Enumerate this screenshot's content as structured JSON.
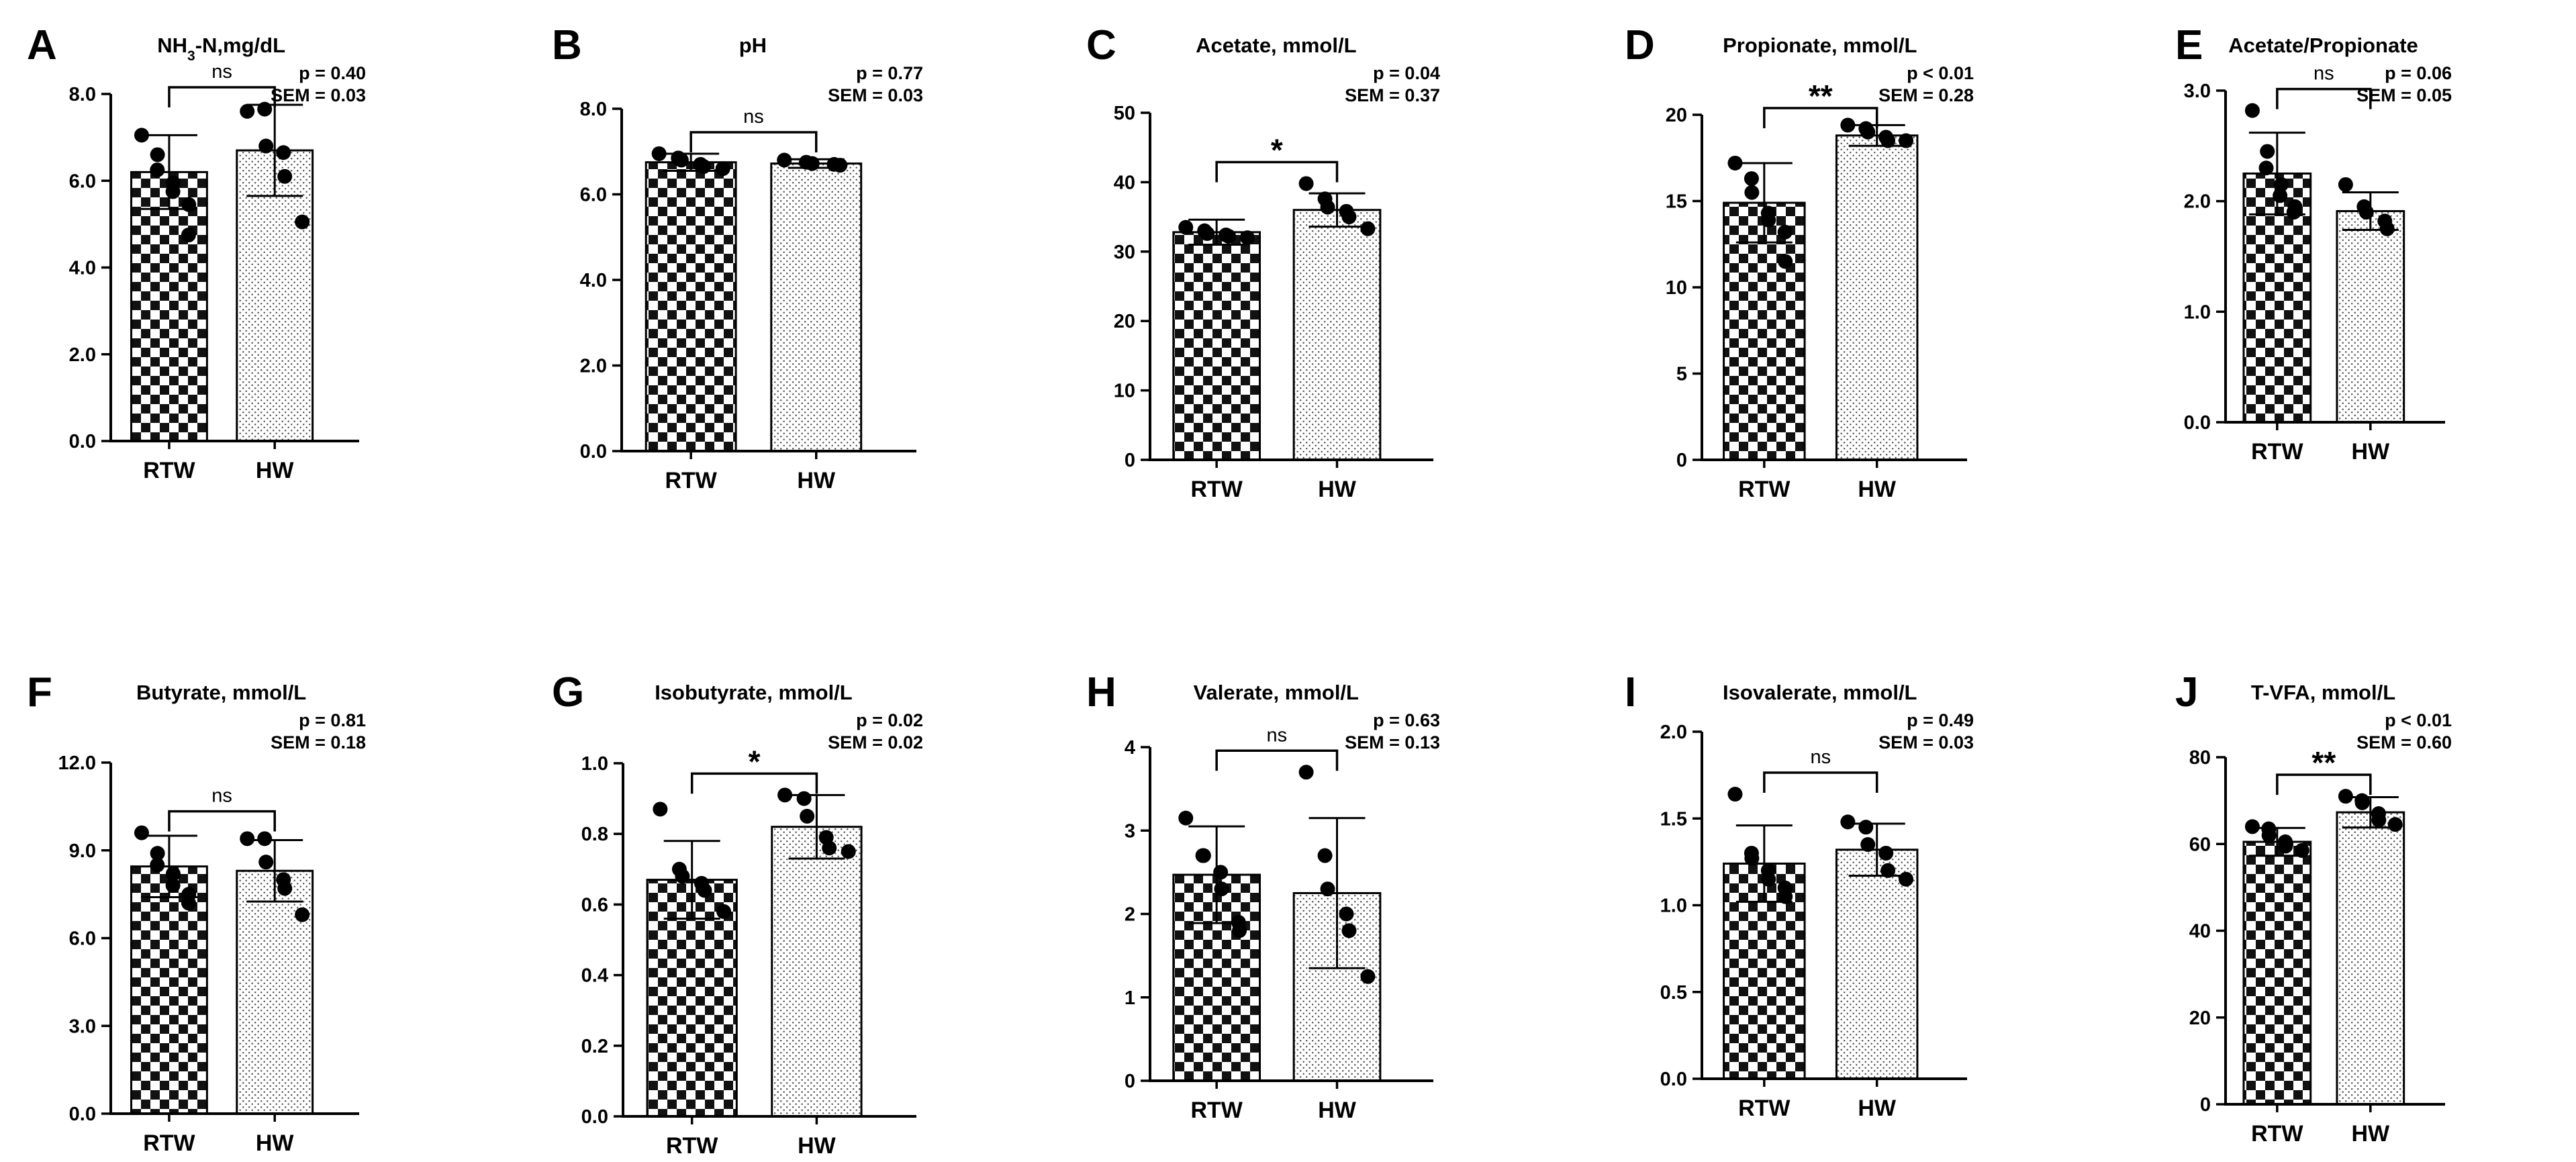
{
  "figure": {
    "categories": [
      "RTW",
      "HW"
    ],
    "significance": {
      "ns": "ns",
      "one_star": "*",
      "two_star": "**"
    }
  },
  "chart_data": [
    {
      "type": "bar",
      "panel": "A",
      "title_parts": [
        "NH",
        "3",
        "-N,mg/dL"
      ],
      "categories": [
        "RTW",
        "HW"
      ],
      "ylim": [
        0,
        8
      ],
      "yticks": [
        0,
        2,
        4,
        6,
        8
      ],
      "ytick_labels": [
        "0.0",
        "2.0",
        "4.0",
        "6.0",
        "8.0"
      ],
      "values": [
        6.2,
        6.7
      ],
      "sd": [
        0.85,
        1.05
      ],
      "points": [
        [
          7.05,
          6.6,
          6.25,
          5.95,
          5.75,
          5.45,
          4.75
        ],
        [
          7.6,
          7.65,
          6.8,
          6.65,
          6.1,
          5.05
        ]
      ],
      "significance": "ns",
      "p_text": "p = 0.40",
      "sem_text": "SEM = 0.03"
    },
    {
      "type": "bar",
      "panel": "B",
      "title_parts": [
        "pH"
      ],
      "categories": [
        "RTW",
        "HW"
      ],
      "ylim": [
        0,
        8
      ],
      "yticks": [
        0,
        2,
        4,
        6,
        8
      ],
      "ytick_labels": [
        "0.0",
        "2.0",
        "4.0",
        "6.0",
        "8.0"
      ],
      "values": [
        6.75,
        6.72
      ],
      "sd": [
        0.2,
        0.1
      ],
      "points": [
        [
          6.95,
          6.85,
          6.8,
          6.7,
          6.65,
          6.6
        ],
        [
          6.8,
          6.75,
          6.72,
          6.7,
          6.68
        ]
      ],
      "significance": "ns",
      "p_text": "p = 0.77",
      "sem_text": "SEM = 0.03"
    },
    {
      "type": "bar",
      "panel": "C",
      "title_parts": [
        "Acetate, mmol/L"
      ],
      "categories": [
        "RTW",
        "HW"
      ],
      "ylim": [
        0,
        50
      ],
      "yticks": [
        0,
        10,
        20,
        30,
        40,
        50
      ],
      "ytick_labels": [
        "0",
        "10",
        "20",
        "30",
        "40",
        "50"
      ],
      "values": [
        32.8,
        36.0
      ],
      "sd": [
        1.8,
        2.4
      ],
      "points": [
        [
          33.5,
          33.0,
          32.6,
          32.4,
          32.2,
          32.0
        ],
        [
          39.8,
          37.6,
          36.4,
          35.8,
          35.0,
          33.3
        ]
      ],
      "significance": "*",
      "p_text": "p = 0.04",
      "sem_text": "SEM = 0.37"
    },
    {
      "type": "bar",
      "panel": "D",
      "title_parts": [
        "Propionate, mmol/L"
      ],
      "categories": [
        "RTW",
        "HW"
      ],
      "ylim": [
        0,
        20
      ],
      "yticks": [
        0,
        5,
        10,
        15,
        20
      ],
      "ytick_labels": [
        "0",
        "5",
        "10",
        "15",
        "20"
      ],
      "values": [
        14.9,
        18.8
      ],
      "sd": [
        2.3,
        0.6
      ],
      "points": [
        [
          17.2,
          16.3,
          15.5,
          14.3,
          13.9,
          13.2,
          11.5
        ],
        [
          19.4,
          19.2,
          19.0,
          18.7,
          18.5,
          18.5
        ]
      ],
      "significance": "**",
      "p_text": "p < 0.01",
      "sem_text": "SEM = 0.28"
    },
    {
      "type": "bar",
      "panel": "E",
      "title_parts": [
        "Acetate/Propionate"
      ],
      "categories": [
        "RTW",
        "HW"
      ],
      "ylim": [
        0,
        3
      ],
      "yticks": [
        0,
        1,
        2,
        3
      ],
      "ytick_labels": [
        "0.0",
        "1.0",
        "2.0",
        "3.0"
      ],
      "values": [
        2.25,
        1.91
      ],
      "sd": [
        0.37,
        0.17
      ],
      "points": [
        [
          2.82,
          2.45,
          2.3,
          2.15,
          2.05,
          1.95,
          1.9
        ],
        [
          2.15,
          1.95,
          1.9,
          1.82,
          1.75
        ]
      ],
      "significance": "ns",
      "p_text": "p = 0.06",
      "sem_text": "SEM = 0.05"
    },
    {
      "type": "bar",
      "panel": "F",
      "title_parts": [
        "Butyrate, mmol/L"
      ],
      "categories": [
        "RTW",
        "HW"
      ],
      "ylim": [
        0,
        12
      ],
      "yticks": [
        0,
        3,
        6,
        9,
        12
      ],
      "ytick_labels": [
        "0.0",
        "3.0",
        "6.0",
        "9.0",
        "12.0"
      ],
      "values": [
        8.45,
        8.3
      ],
      "sd": [
        1.05,
        1.05
      ],
      "points": [
        [
          9.6,
          8.9,
          8.5,
          8.2,
          7.8,
          7.5,
          7.2
        ],
        [
          9.4,
          9.4,
          8.6,
          8.0,
          7.7,
          6.8
        ]
      ],
      "significance": "ns",
      "p_text": "p = 0.81",
      "sem_text": "SEM = 0.18"
    },
    {
      "type": "bar",
      "panel": "G",
      "title_parts": [
        "Isobutyrate, mmol/L"
      ],
      "categories": [
        "RTW",
        "HW"
      ],
      "ylim": [
        0,
        1
      ],
      "yticks": [
        0,
        0.2,
        0.4,
        0.6,
        0.8,
        1.0
      ],
      "ytick_labels": [
        "0.0",
        "0.2",
        "0.4",
        "0.6",
        "0.8",
        "1.0"
      ],
      "values": [
        0.67,
        0.82
      ],
      "sd": [
        0.11,
        0.09
      ],
      "points": [
        [
          0.87,
          0.7,
          0.68,
          0.66,
          0.64,
          0.58
        ],
        [
          0.91,
          0.9,
          0.85,
          0.79,
          0.76,
          0.75
        ]
      ],
      "significance": "*",
      "p_text": "p = 0.02",
      "sem_text": "SEM = 0.02"
    },
    {
      "type": "bar",
      "panel": "H",
      "title_parts": [
        "Valerate, mmol/L"
      ],
      "categories": [
        "RTW",
        "HW"
      ],
      "ylim": [
        0,
        4
      ],
      "yticks": [
        0,
        1,
        2,
        3,
        4
      ],
      "ytick_labels": [
        "0",
        "1",
        "2",
        "3",
        "4"
      ],
      "values": [
        2.47,
        2.25
      ],
      "sd": [
        0.58,
        0.9
      ],
      "points": [
        [
          3.15,
          2.7,
          2.7,
          2.5,
          2.3,
          1.9,
          1.8
        ],
        [
          3.7,
          2.7,
          2.3,
          2.0,
          1.8,
          1.25
        ]
      ],
      "significance": "ns",
      "p_text": "p = 0.63",
      "sem_text": "SEM = 0.13"
    },
    {
      "type": "bar",
      "panel": "I",
      "title_parts": [
        "Isovalerate, mmol/L"
      ],
      "categories": [
        "RTW",
        "HW"
      ],
      "ylim": [
        0,
        2
      ],
      "yticks": [
        0,
        0.5,
        1.0,
        1.5,
        2.0
      ],
      "ytick_labels": [
        "0.0",
        "0.5",
        "1.0",
        "1.5",
        "2.0"
      ],
      "values": [
        1.24,
        1.32
      ],
      "sd": [
        0.22,
        0.15
      ],
      "points": [
        [
          1.64,
          1.3,
          1.27,
          1.2,
          1.15,
          1.1,
          1.05
        ],
        [
          1.48,
          1.45,
          1.35,
          1.3,
          1.2,
          1.15
        ]
      ],
      "significance": "ns",
      "p_text": "p = 0.49",
      "sem_text": "SEM = 0.03"
    },
    {
      "type": "bar",
      "panel": "J",
      "title_parts": [
        "T-VFA, mmol/L"
      ],
      "categories": [
        "RTW",
        "HW"
      ],
      "ylim": [
        0,
        80
      ],
      "yticks": [
        0,
        20,
        40,
        60,
        80
      ],
      "ytick_labels": [
        "0",
        "20",
        "40",
        "60",
        "80"
      ],
      "values": [
        60.5,
        67.3
      ],
      "sd": [
        3.2,
        3.5
      ],
      "points": [
        [
          64.0,
          63.5,
          62.0,
          60.5,
          59.5,
          58.5
        ],
        [
          71.0,
          70.0,
          69.5,
          67.0,
          65.5,
          64.5
        ]
      ],
      "significance": "**",
      "p_text": "p < 0.01",
      "sem_text": "SEM = 0.60"
    }
  ]
}
